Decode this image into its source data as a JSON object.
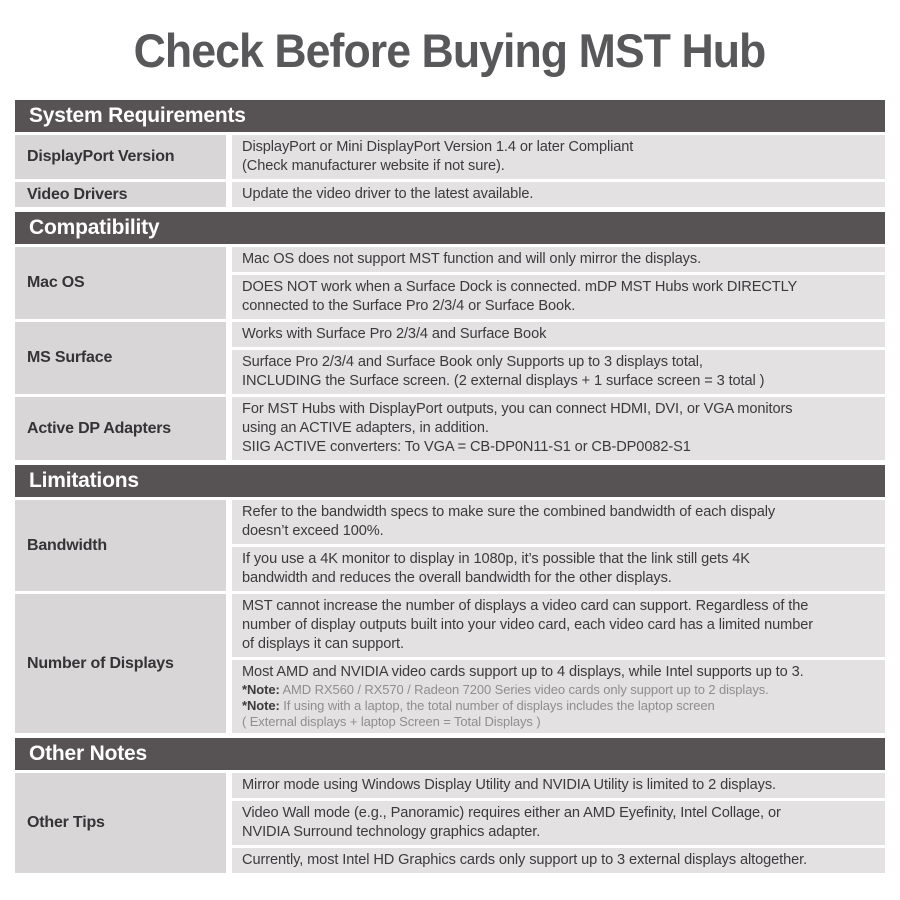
{
  "page": {
    "title": "Check Before Buying MST Hub"
  },
  "colors": {
    "page_bg": "#ffffff",
    "title_text": "#58585a",
    "section_header_bg": "#575254",
    "section_header_text": "#ffffff",
    "label_cell_bg": "#d8d6d7",
    "value_cell_bg": "#e3e1e2",
    "label_text": "#343335",
    "body_text": "#3b3a3c",
    "note_text": "#8f8d8e"
  },
  "sections": [
    {
      "header": "System Requirements",
      "rows": [
        {
          "label": "DisplayPort Version",
          "cells": [
            {
              "lines": [
                "DisplayPort or Mini DisplayPort Version 1.4 or later Compliant",
                "(Check manufacturer website if not sure)."
              ]
            }
          ]
        },
        {
          "label": "Video Drivers",
          "cells": [
            {
              "lines": [
                "Update the video driver to the latest available."
              ]
            }
          ]
        }
      ]
    },
    {
      "header": "Compatibility",
      "rows": [
        {
          "label": "Mac OS",
          "cells": [
            {
              "lines": [
                "Mac OS does not support MST function and will only mirror the displays."
              ]
            },
            {
              "lines": [
                "DOES NOT work when a Surface Dock is connected. mDP MST Hubs work DIRECTLY",
                "connected to the Surface Pro 2/3/4 or Surface Book."
              ]
            }
          ]
        },
        {
          "label": "MS Surface",
          "cells": [
            {
              "lines": [
                "Works with Surface Pro 2/3/4 and Surface Book"
              ]
            },
            {
              "lines": [
                "Surface Pro 2/3/4 and Surface Book only Supports up to 3 displays total,",
                "INCLUDING the Surface screen. (2 external displays + 1 surface screen = 3 total )"
              ]
            }
          ]
        },
        {
          "label": "Active DP Adapters",
          "cells": [
            {
              "lines": [
                "For MST Hubs with DisplayPort outputs, you can connect HDMI, DVI, or VGA monitors",
                "using an ACTIVE adapters, in addition.",
                "SIIG ACTIVE converters: To VGA = CB-DP0N11-S1 or CB-DP0082-S1"
              ]
            }
          ]
        }
      ]
    },
    {
      "header": "Limitations",
      "rows": [
        {
          "label": "Bandwidth",
          "cells": [
            {
              "lines": [
                "Refer to the bandwidth specs to make sure the combined bandwidth of each dispaly",
                "doesn’t exceed 100%."
              ]
            },
            {
              "lines": [
                "If you use a 4K monitor to display in 1080p, it’s possible that the link still gets 4K",
                "bandwidth and reduces the overall bandwidth for the other displays."
              ]
            }
          ]
        },
        {
          "label": "Number of Displays",
          "cells": [
            {
              "lines": [
                "MST cannot increase the number of displays a video card can support. Regardless of the",
                "number of display outputs built into your video card, each video card has a limited  number",
                "of displays it can support."
              ]
            },
            {
              "lines": [
                "Most AMD and NVIDIA video cards support up to 4 displays, while Intel supports up to 3."
              ],
              "notes": [
                {
                  "prefix": "*Note:",
                  "text": "AMD RX560 / RX570 / Radeon 7200 Series video cards only support up to 2 displays."
                },
                {
                  "prefix": "*Note:",
                  "text": "If using with a laptop, the total number of displays includes the laptop screen"
                },
                {
                  "prefix": "",
                  "text": "( External displays + laptop Screen = Total Displays )"
                }
              ]
            }
          ]
        }
      ]
    },
    {
      "header": "Other Notes",
      "rows": [
        {
          "label": "Other Tips",
          "cells": [
            {
              "lines": [
                "Mirror mode using Windows Display Utility and NVIDIA Utility is limited to 2 displays."
              ]
            },
            {
              "lines": [
                "Video Wall mode (e.g., Panoramic) requires either an AMD Eyefinity, Intel Collage, or",
                "NVIDIA Surround technology graphics adapter."
              ]
            },
            {
              "lines": [
                "Currently, most Intel HD Graphics cards only support up to 3 external displays altogether."
              ]
            }
          ]
        }
      ]
    }
  ]
}
